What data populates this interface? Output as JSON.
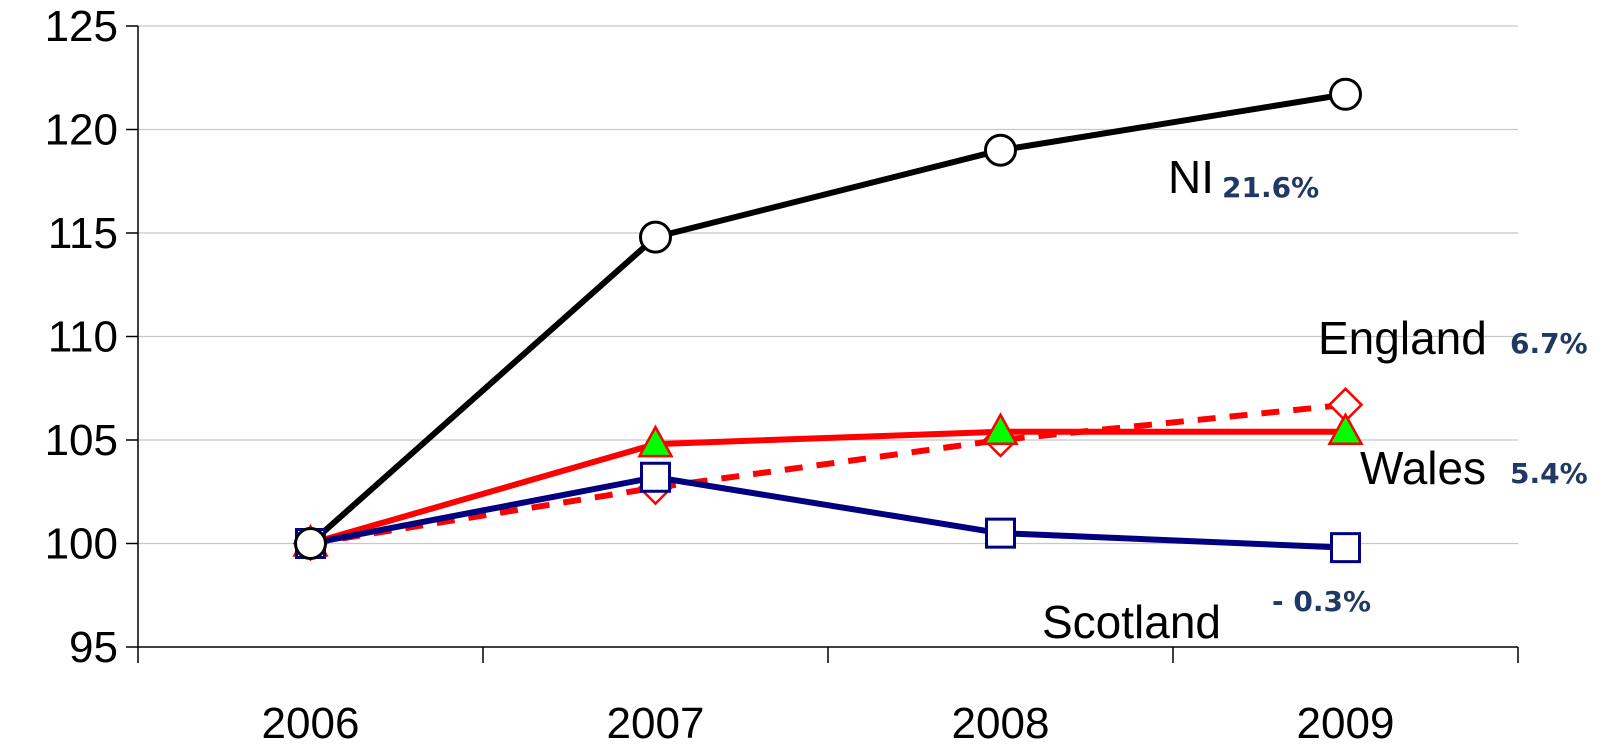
{
  "chart_data": {
    "type": "line",
    "title": "",
    "xlabel": "",
    "ylabel": "",
    "categories": [
      "2006",
      "2007",
      "2008",
      "2009"
    ],
    "ylim": [
      95,
      125
    ],
    "yticks": [
      95,
      100,
      105,
      110,
      115,
      120,
      125
    ],
    "grid": true,
    "legend": "none",
    "series": [
      {
        "name": "NI",
        "values": [
          100,
          114.8,
          119.0,
          121.7
        ],
        "color": "#000000",
        "line_style": "solid",
        "marker": "circle",
        "marker_fill": "#ffffff",
        "change_label": "21.6%"
      },
      {
        "name": "England",
        "values": [
          100,
          102.7,
          105.0,
          106.7
        ],
        "color": "#ff0000",
        "line_style": "dashed",
        "marker": "diamond",
        "marker_fill": "#ffffff",
        "change_label": "6.7%"
      },
      {
        "name": "Wales",
        "values": [
          100,
          104.8,
          105.4,
          105.4
        ],
        "color": "#ff0000",
        "line_style": "solid",
        "marker": "triangle",
        "marker_fill": "#00ff00",
        "change_label": "5.4%"
      },
      {
        "name": "Scotland",
        "values": [
          100,
          103.2,
          100.5,
          99.8
        ],
        "color": "#000080",
        "line_style": "solid",
        "marker": "square",
        "marker_fill": "#ffffff",
        "change_label": "- 0.3%"
      }
    ]
  }
}
